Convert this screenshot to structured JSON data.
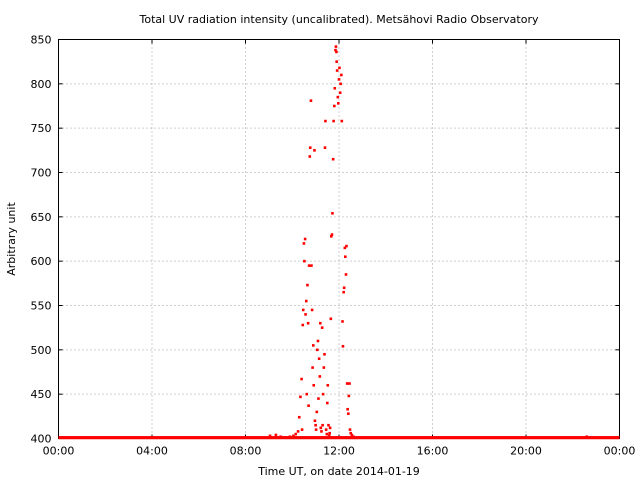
{
  "chart_data": {
    "type": "scatter",
    "title": "Total UV radiation intensity (uncalibrated). Metsähovi Radio Observatory",
    "xlabel": "Time UT, on date 2014-01-19",
    "ylabel": "Arbitrary unit",
    "xlim": [
      0,
      24
    ],
    "ylim": [
      400,
      850
    ],
    "x_ticks": [
      {
        "value": 0,
        "label": "00:00"
      },
      {
        "value": 4,
        "label": "04:00"
      },
      {
        "value": 8,
        "label": "08:00"
      },
      {
        "value": 12,
        "label": "12:00"
      },
      {
        "value": 16,
        "label": "16:00"
      },
      {
        "value": 20,
        "label": "20:00"
      },
      {
        "value": 24,
        "label": "00:00"
      }
    ],
    "y_ticks": [
      400,
      450,
      500,
      550,
      600,
      650,
      700,
      750,
      800,
      850
    ],
    "grid": true,
    "marker_color": "#ff0000",
    "baseline": {
      "y": 400.5,
      "x_start": 0,
      "x_end": 24
    },
    "points": [
      [
        9.05,
        403
      ],
      [
        9.3,
        404
      ],
      [
        9.5,
        402
      ],
      [
        9.7,
        401
      ],
      [
        9.9,
        402
      ],
      [
        10.05,
        403
      ],
      [
        10.15,
        405
      ],
      [
        10.25,
        408
      ],
      [
        10.3,
        424
      ],
      [
        10.35,
        447
      ],
      [
        10.4,
        467
      ],
      [
        10.42,
        410
      ],
      [
        10.45,
        528
      ],
      [
        10.47,
        545
      ],
      [
        10.5,
        620
      ],
      [
        10.52,
        600
      ],
      [
        10.55,
        625
      ],
      [
        10.57,
        540
      ],
      [
        10.6,
        555
      ],
      [
        10.62,
        450
      ],
      [
        10.65,
        573
      ],
      [
        10.68,
        530
      ],
      [
        10.7,
        437
      ],
      [
        10.72,
        595
      ],
      [
        10.75,
        718
      ],
      [
        10.77,
        728
      ],
      [
        10.8,
        781
      ],
      [
        10.82,
        595
      ],
      [
        10.85,
        545
      ],
      [
        10.87,
        480
      ],
      [
        10.9,
        505
      ],
      [
        10.92,
        460
      ],
      [
        10.95,
        725
      ],
      [
        10.97,
        420
      ],
      [
        11.0,
        415
      ],
      [
        11.02,
        410
      ],
      [
        11.05,
        430
      ],
      [
        11.07,
        500
      ],
      [
        11.1,
        510
      ],
      [
        11.12,
        445
      ],
      [
        11.15,
        490
      ],
      [
        11.18,
        470
      ],
      [
        11.2,
        530
      ],
      [
        11.22,
        412
      ],
      [
        11.25,
        408
      ],
      [
        11.28,
        525
      ],
      [
        11.3,
        415
      ],
      [
        11.32,
        450
      ],
      [
        11.35,
        480
      ],
      [
        11.38,
        495
      ],
      [
        11.4,
        728
      ],
      [
        11.42,
        758
      ],
      [
        11.45,
        410
      ],
      [
        11.48,
        405
      ],
      [
        11.5,
        440
      ],
      [
        11.52,
        460
      ],
      [
        11.55,
        415
      ],
      [
        11.58,
        403
      ],
      [
        11.6,
        406
      ],
      [
        11.62,
        412
      ],
      [
        11.65,
        535
      ],
      [
        11.67,
        628
      ],
      [
        11.7,
        630
      ],
      [
        11.72,
        654
      ],
      [
        11.75,
        715
      ],
      [
        11.77,
        758
      ],
      [
        11.8,
        775
      ],
      [
        11.82,
        795
      ],
      [
        11.85,
        838
      ],
      [
        11.87,
        842
      ],
      [
        11.89,
        836
      ],
      [
        11.9,
        825
      ],
      [
        11.92,
        815
      ],
      [
        11.95,
        785
      ],
      [
        11.97,
        778
      ],
      [
        12.0,
        805
      ],
      [
        12.02,
        818
      ],
      [
        12.05,
        790
      ],
      [
        12.07,
        800
      ],
      [
        12.1,
        810
      ],
      [
        12.12,
        758
      ],
      [
        12.15,
        532
      ],
      [
        12.17,
        504
      ],
      [
        12.2,
        565
      ],
      [
        12.22,
        570
      ],
      [
        12.25,
        615
      ],
      [
        12.27,
        605
      ],
      [
        12.3,
        585
      ],
      [
        12.32,
        617
      ],
      [
        12.35,
        462
      ],
      [
        12.37,
        433
      ],
      [
        12.4,
        428
      ],
      [
        12.42,
        448
      ],
      [
        12.45,
        462
      ],
      [
        12.47,
        410
      ],
      [
        12.5,
        406
      ],
      [
        12.55,
        404
      ],
      [
        12.62,
        402
      ],
      [
        12.7,
        401
      ],
      [
        22.6,
        402
      ]
    ]
  }
}
